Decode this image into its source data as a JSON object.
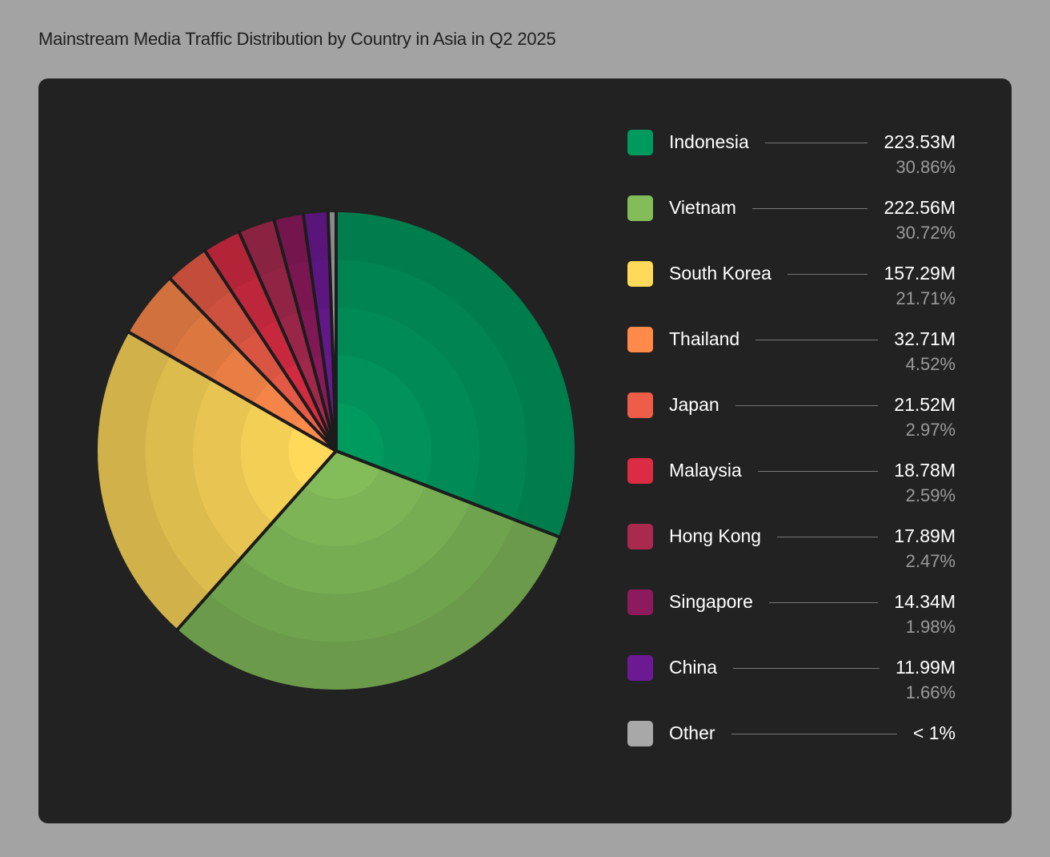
{
  "chart_data": {
    "type": "pie",
    "title": "Mainstream Media Traffic Distribution by Country in Asia in Q2 2025",
    "slices": [
      {
        "label": "Indonesia",
        "value": 223.53,
        "display_value": "223.53M",
        "percent": 30.86,
        "display_percent": "30.86%",
        "color": "#00995e"
      },
      {
        "label": "Vietnam",
        "value": 222.56,
        "display_value": "222.56M",
        "percent": 30.72,
        "display_percent": "30.72%",
        "color": "#82bd5a"
      },
      {
        "label": "South Korea",
        "value": 157.29,
        "display_value": "157.29M",
        "percent": 21.71,
        "display_percent": "21.71%",
        "color": "#ffd95a"
      },
      {
        "label": "Thailand",
        "value": 32.71,
        "display_value": "32.71M",
        "percent": 4.52,
        "display_percent": "4.52%",
        "color": "#ff8a4a"
      },
      {
        "label": "Japan",
        "value": 21.52,
        "display_value": "21.52M",
        "percent": 2.97,
        "display_percent": "2.97%",
        "color": "#ee5d48"
      },
      {
        "label": "Malaysia",
        "value": 18.78,
        "display_value": "18.78M",
        "percent": 2.59,
        "display_percent": "2.59%",
        "color": "#db2c44"
      },
      {
        "label": "Hong Kong",
        "value": 17.89,
        "display_value": "17.89M",
        "percent": 2.47,
        "display_percent": "2.47%",
        "color": "#a82a4f"
      },
      {
        "label": "Singapore",
        "value": 14.34,
        "display_value": "14.34M",
        "percent": 1.98,
        "display_percent": "1.98%",
        "color": "#8e1a5e"
      },
      {
        "label": "China",
        "value": 11.99,
        "display_value": "11.99M",
        "percent": 1.66,
        "display_percent": "1.66%",
        "color": "#6c1a94"
      },
      {
        "label": "Other",
        "value": null,
        "display_value": "< 1%",
        "percent": null,
        "display_percent": "",
        "color": "#a8a8a8"
      }
    ],
    "other_percent_estimate": 0.54,
    "legend_position": "right",
    "start_angle": "12 o'clock",
    "direction": "clockwise",
    "colors": {
      "background": "#a3a3a3",
      "panel": "#222222",
      "separator": "#1c1c1c"
    }
  }
}
